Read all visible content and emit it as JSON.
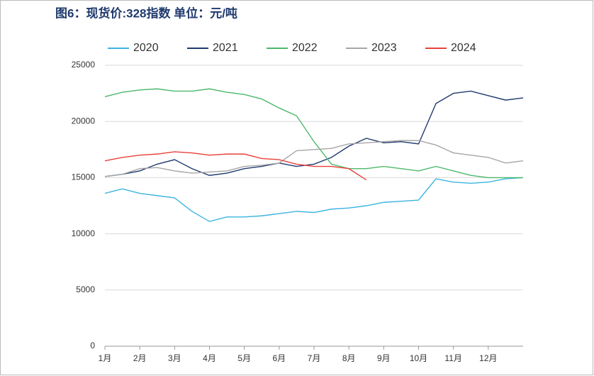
{
  "chart_data": {
    "type": "line",
    "title": "图6：现货价:328指数  单位：元/吨",
    "x": [
      1,
      1.5,
      2,
      2.5,
      3,
      3.5,
      4,
      4.5,
      5,
      5.5,
      6,
      6.5,
      7,
      7.5,
      8,
      8.5,
      9,
      9.5,
      10,
      10.5,
      11,
      11.5,
      12,
      12.5,
      13
    ],
    "xlim": [
      1,
      13
    ],
    "xticks": [
      {
        "value": 1,
        "label": "1月"
      },
      {
        "value": 2,
        "label": "2月"
      },
      {
        "value": 3,
        "label": "3月"
      },
      {
        "value": 4,
        "label": "4月"
      },
      {
        "value": 5,
        "label": "5月"
      },
      {
        "value": 6,
        "label": "6月"
      },
      {
        "value": 7,
        "label": "7月"
      },
      {
        "value": 8,
        "label": "8月"
      },
      {
        "value": 9,
        "label": "9月"
      },
      {
        "value": 10,
        "label": "10月"
      },
      {
        "value": 11,
        "label": "11月"
      },
      {
        "value": 12,
        "label": "12月"
      }
    ],
    "ylim": [
      0,
      25000
    ],
    "yticks": [
      0,
      5000,
      10000,
      15000,
      20000,
      25000
    ],
    "grid": true,
    "legend": "top",
    "series": [
      {
        "name": "2020",
        "color": "#3cb4e0",
        "values": [
          13600,
          14000,
          13600,
          13400,
          13200,
          12000,
          11100,
          11500,
          11500,
          11600,
          11800,
          12000,
          11900,
          12200,
          12300,
          12500,
          12800,
          12900,
          13000,
          14900,
          14600,
          14500,
          14600,
          14900,
          15000
        ]
      },
      {
        "name": "2021",
        "color": "#1f3a6e",
        "values": [
          15100,
          15300,
          15600,
          16200,
          16600,
          15800,
          15200,
          15400,
          15800,
          16000,
          16300,
          16000,
          16200,
          16800,
          17800,
          18500,
          18100,
          18200,
          18000,
          21600,
          22500,
          22700,
          22300,
          21900,
          22100
        ]
      },
      {
        "name": "2022",
        "color": "#4cb86b",
        "values": [
          22200,
          22600,
          22800,
          22900,
          22700,
          22700,
          22900,
          22600,
          22400,
          22000,
          21200,
          20500,
          18200,
          16200,
          15800,
          15800,
          16000,
          15800,
          15600,
          16000,
          15600,
          15200,
          15000,
          15000,
          15000
        ]
      },
      {
        "name": "2023",
        "color": "#a6a6a6",
        "values": [
          15100,
          15300,
          15800,
          15900,
          15600,
          15400,
          15500,
          15600,
          16000,
          16100,
          16300,
          17400,
          17500,
          17600,
          18000,
          18100,
          18200,
          18300,
          18300,
          17900,
          17200,
          17000,
          16800,
          16300,
          16500
        ]
      },
      {
        "name": "2024",
        "color": "#e8413a",
        "values": [
          16500,
          16800,
          17000,
          17100,
          17300,
          17200,
          17000,
          17100,
          17100,
          16700,
          16600,
          16200,
          16000,
          16000,
          15800,
          14800,
          null,
          null,
          null,
          null,
          null,
          null,
          null,
          null,
          null
        ]
      }
    ]
  }
}
